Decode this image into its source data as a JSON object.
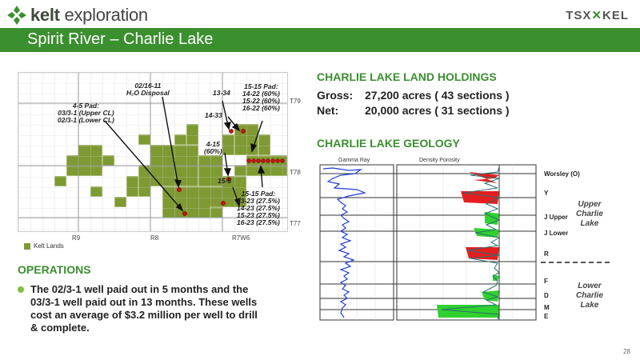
{
  "header": {
    "logo_bold": "kelt",
    "logo_rest": " exploration",
    "exchange": "TSX",
    "ticker": "KEL"
  },
  "title": "Spirit River – Charlie Lake",
  "map": {
    "township_labels": [
      "T79",
      "T78",
      "T77"
    ],
    "range_labels": [
      "R9",
      "R8",
      "R7W6"
    ],
    "legend": "Kelt Lands",
    "labels": {
      "pad45": [
        "4-5 Pad:",
        "03/3-1 (Upper CL)",
        "02/3-1 (Lower CL)"
      ],
      "disposal": [
        "02/16-11",
        "H₂O Disposal"
      ],
      "l1334": "13-34",
      "l1433": "14-33",
      "pad1515a": [
        "15-15 Pad:",
        "14-22 (60%)",
        "15-22 (60%)",
        "16-22 (60%)"
      ],
      "l415": [
        "4-15",
        "(60%)"
      ],
      "l155": "15-5",
      "pad1515b": [
        "15-15 Pad:",
        "13-23 (27.5%)",
        "14-23 (27.5%)",
        "15-23 (27.5%)",
        "16-23 (27.5%)"
      ]
    }
  },
  "holdings": {
    "title": "CHARLIE LAKE LAND HOLDINGS",
    "gross_label": "Gross:",
    "gross_value": "27,200 acres ( 43 sections )",
    "net_label": "Net:",
    "net_value": "20,000 acres ( 31 sections )"
  },
  "geology": {
    "title": "CHARLIE LAKE GEOLOGY",
    "gamma_label": "Gamma Ray",
    "density_label": "Density Porosity",
    "zones": [
      "Worsley (O)",
      "Y",
      "J Upper",
      "J Lower",
      "R",
      "F",
      "D",
      "M",
      "E"
    ],
    "upper_group": [
      "Upper",
      "Charlie",
      "Lake"
    ],
    "lower_group": [
      "Lower",
      "Charlie",
      "Lake"
    ]
  },
  "operations": {
    "title": "OPERATIONS",
    "bullet": "The 02/3-1 well paid out in 5 months and the 03/3-1 well paid out in 13 months. These wells cost an average of $3.2 million per well to drill & complete."
  },
  "page_number": "28",
  "colors": {
    "brand_green": "#3a8f2e",
    "land_green": "#7f9a33",
    "well_red": "#cc1111",
    "log_red": "#e41e1e",
    "log_green": "#2fd12f",
    "gamma_blue": "#1f3fd6"
  }
}
